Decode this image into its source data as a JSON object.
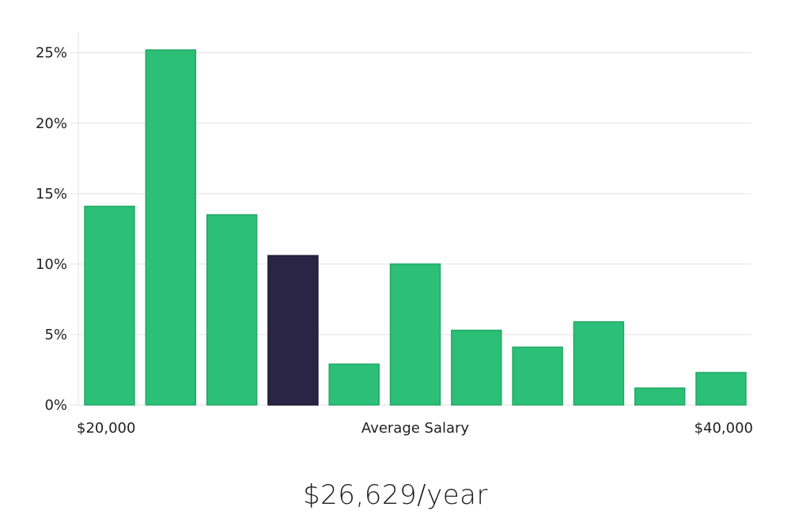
{
  "colors": {
    "bar": "#2bbf77",
    "bar_stroke": "#22a866",
    "highlight": "#2a2545",
    "highlight_stroke": "#1c1833",
    "grid": "#e2e2e2",
    "text": "#1f1f1f"
  },
  "chart_data": {
    "type": "bar",
    "categories": [
      "1",
      "2",
      "3",
      "4",
      "5",
      "6",
      "7",
      "8",
      "9",
      "10",
      "11"
    ],
    "values": [
      14.1,
      25.2,
      13.5,
      10.6,
      2.9,
      10.0,
      5.3,
      4.1,
      5.9,
      1.2,
      2.3
    ],
    "highlight_index": 3,
    "title": "",
    "xlabel": "Average Salary",
    "ylabel": "",
    "x_start_label": "$20,000",
    "x_end_label": "$40,000",
    "y_ticks": [
      0,
      5,
      10,
      15,
      20,
      25
    ],
    "y_tick_labels": [
      "0%",
      "5%",
      "10%",
      "15%",
      "20%",
      "25%"
    ],
    "ylim": [
      0,
      26.5
    ],
    "grid": true,
    "legend": "none"
  },
  "summary": {
    "salary": "$26,629/year"
  }
}
